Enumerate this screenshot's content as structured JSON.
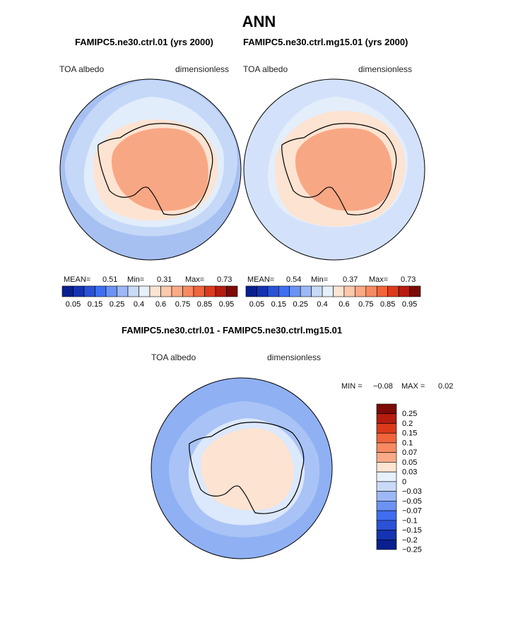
{
  "title": "ANN",
  "panels": [
    {
      "id": "p1",
      "subtitle": "FAMIPC5.ne30.ctrl.01 (yrs 2000)",
      "left_label": "TOA albedo",
      "right_label": "dimensionless",
      "mean_label": "MEAN=",
      "mean": "0.51",
      "min_label": "Min=",
      "min": "0.31",
      "max_label": "Max=",
      "max": "0.73"
    },
    {
      "id": "p2",
      "subtitle": "FAMIPC5.ne30.ctrl.mg15.01 (yrs 2000)",
      "left_label": "TOA albedo",
      "right_label": "dimensionless",
      "mean_label": "MEAN=",
      "mean": "0.54",
      "min_label": "Min=",
      "min": "0.37",
      "max_label": "Max=",
      "max": "0.73"
    }
  ],
  "diff_panel": {
    "subtitle": "FAMIPC5.ne30.ctrl.01 - FAMIPC5.ne30.ctrl.mg15.01",
    "left_label": "TOA albedo",
    "right_label": "dimensionless",
    "min_label": "MIN =",
    "min": "−0.08",
    "max_label": "MAX =",
    "max": "0.02"
  },
  "colorbar_top": {
    "colors": [
      "#0a1f8f",
      "#1533b0",
      "#2a52d6",
      "#3f6ef0",
      "#6b93f5",
      "#9db8f7",
      "#c9daf9",
      "#e6f0fb",
      "#fde4d2",
      "#fbc8ac",
      "#f9aa86",
      "#f78a61",
      "#f1643c",
      "#dc3a1c",
      "#b51c0f",
      "#7c0a06"
    ],
    "tick_labels": [
      "0.05",
      "0.15",
      "0.25",
      "0.4",
      "0.6",
      "0.75",
      "0.85",
      "0.95"
    ]
  },
  "colorbar_diff": {
    "colors": [
      "#7c0a06",
      "#b51c0f",
      "#dc3a1c",
      "#f1643c",
      "#f78a61",
      "#f9aa86",
      "#fde4d2",
      "#e6f0fb",
      "#c9daf9",
      "#9db8f7",
      "#6b93f5",
      "#3f6ef0",
      "#2a52d6",
      "#1533b0",
      "#0a1f8f"
    ],
    "tick_labels": [
      "0.25",
      "0.2",
      "0.15",
      "0.1",
      "0.07",
      "0.05",
      "0.03",
      "0",
      "−0.03",
      "−0.05",
      "−0.07",
      "−0.1",
      "−0.15",
      "−0.2",
      "−0.25"
    ]
  }
}
